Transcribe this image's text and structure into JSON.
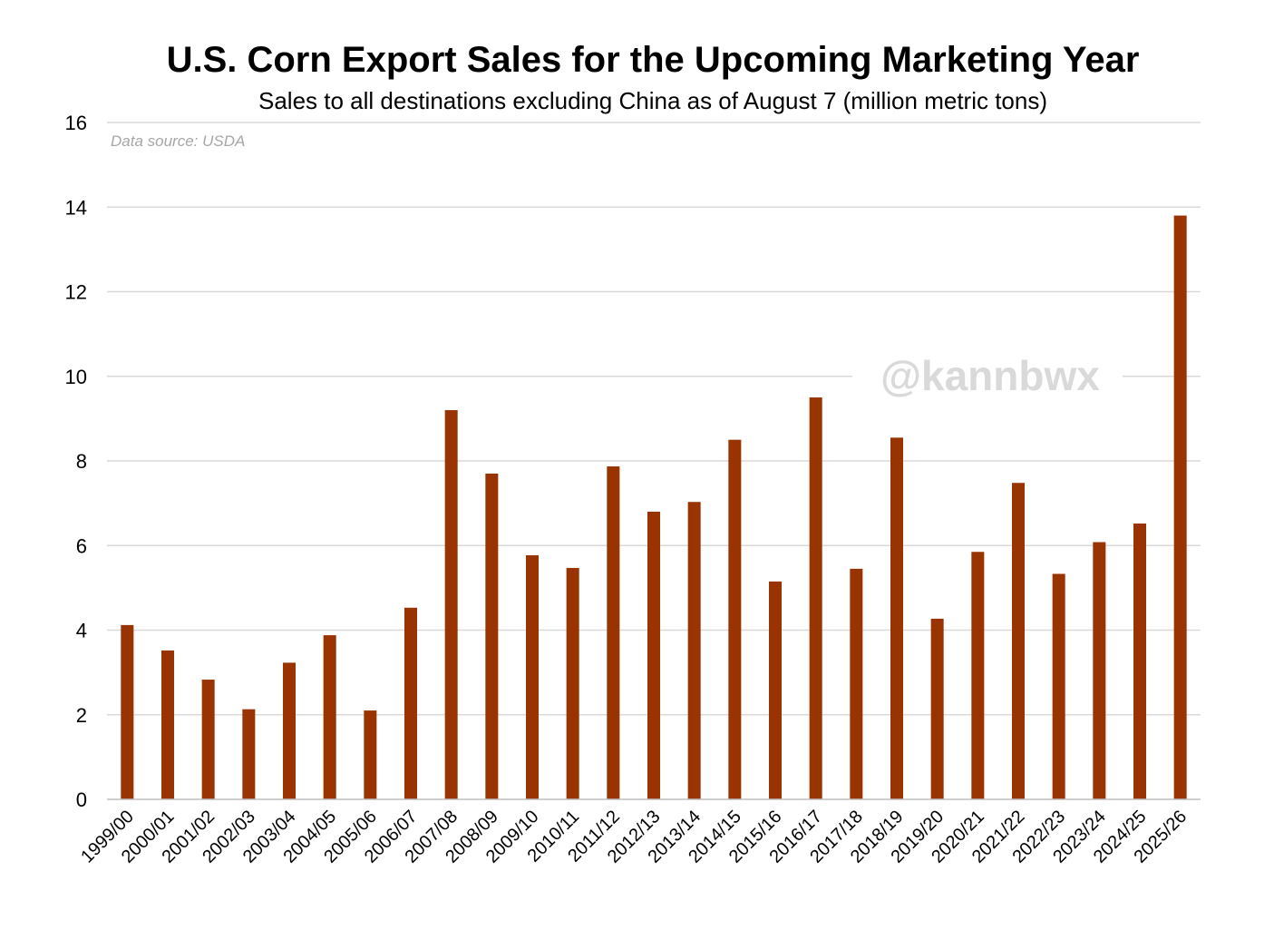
{
  "chart_data": {
    "type": "bar",
    "title": "U.S. Corn Export Sales for the Upcoming Marketing Year",
    "subtitle": "Sales to all destinations excluding China as of August 7 (million metric tons)",
    "source_note": "Data source: USDA",
    "watermark": "@kannbwx",
    "bar_color": "#993300",
    "grid": true,
    "ylim": [
      0,
      16
    ],
    "yticks": [
      0,
      2,
      4,
      6,
      8,
      10,
      12,
      14,
      16
    ],
    "categories": [
      "1999/00",
      "2000/01",
      "2001/02",
      "2002/03",
      "2003/04",
      "2004/05",
      "2005/06",
      "2006/07",
      "2007/08",
      "2008/09",
      "2009/10",
      "2010/11",
      "2011/12",
      "2012/13",
      "2013/14",
      "2014/15",
      "2015/16",
      "2016/17",
      "2017/18",
      "2018/19",
      "2019/20",
      "2020/21",
      "2021/22",
      "2022/23",
      "2023/24",
      "2024/25",
      "2025/26"
    ],
    "values": [
      4.12,
      3.52,
      2.83,
      2.13,
      3.23,
      3.88,
      2.1,
      4.53,
      9.2,
      7.7,
      5.77,
      5.47,
      7.87,
      6.8,
      7.03,
      8.5,
      5.15,
      9.5,
      5.45,
      8.55,
      4.27,
      5.85,
      7.48,
      5.33,
      6.08,
      6.52,
      13.8
    ]
  }
}
